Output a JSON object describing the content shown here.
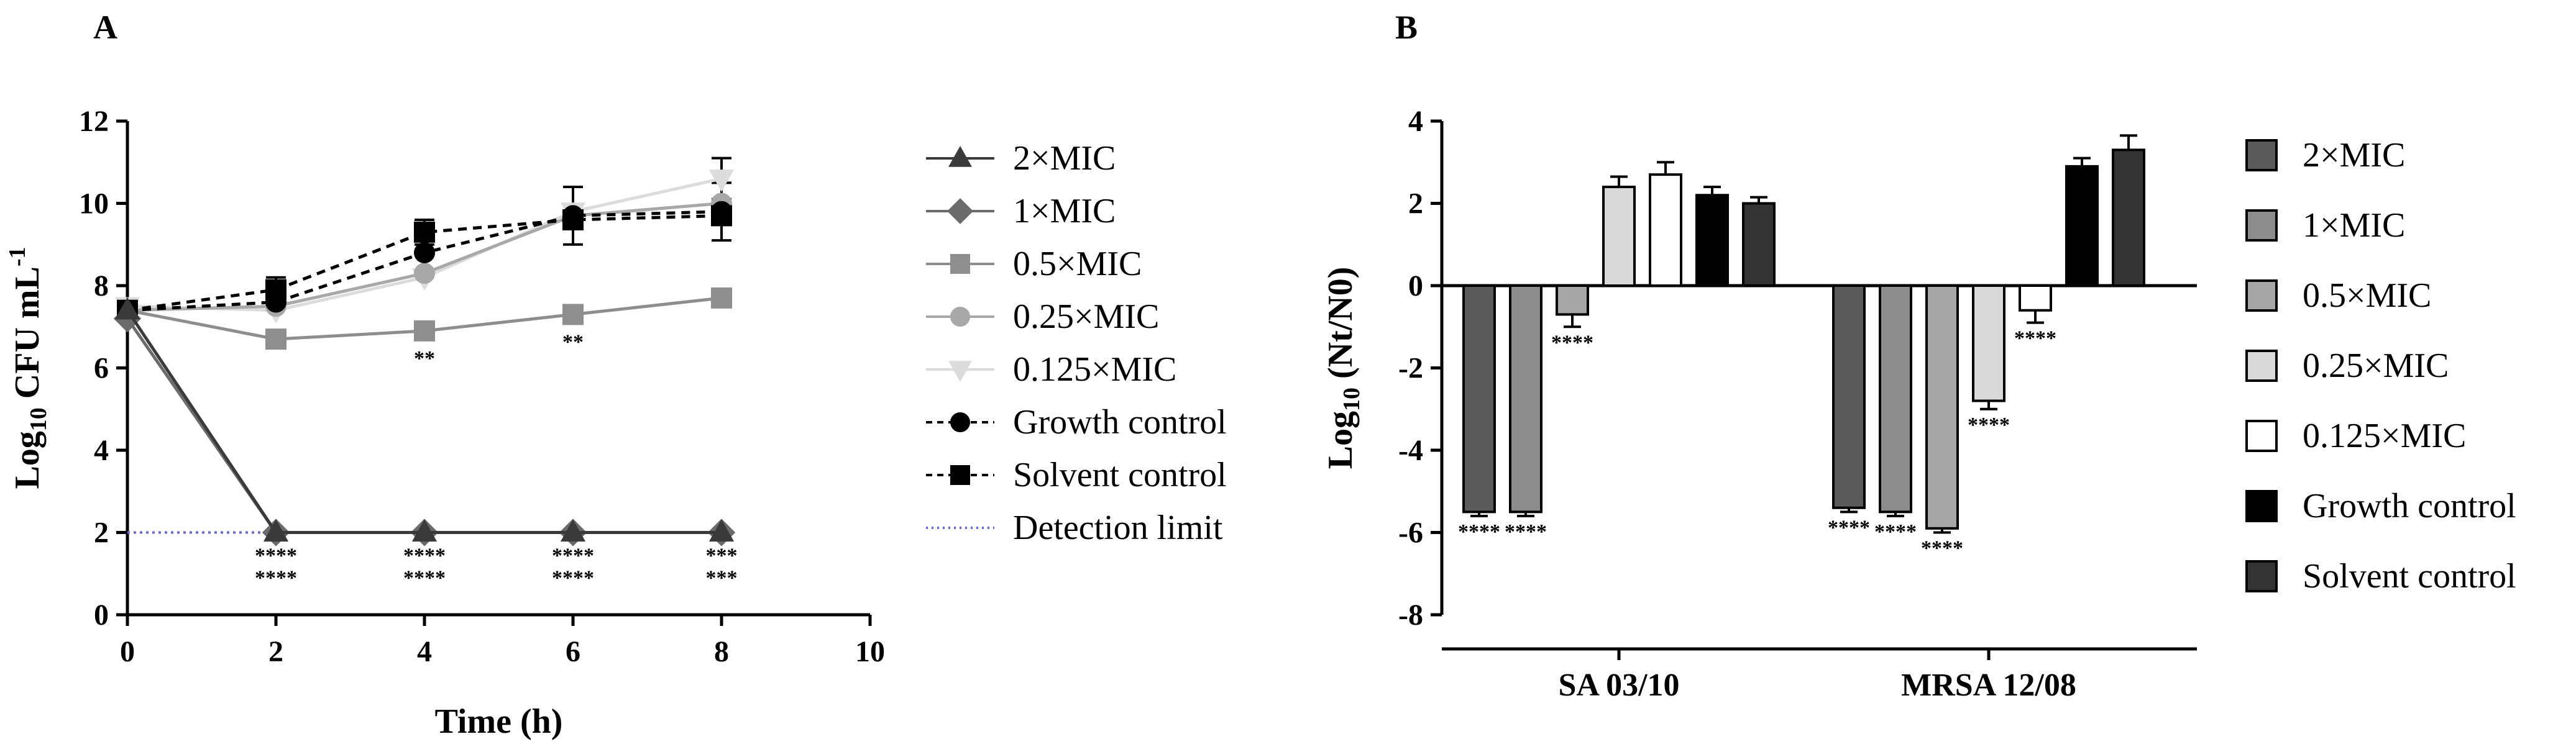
{
  "panels": [
    {
      "letter": "A",
      "chart_data": {
        "type": "line",
        "xlabel": "Time (h)",
        "ylabel_main": "Log",
        "ylabel_sub": "10",
        "ylabel_rest": " CFU mL",
        "ylabel_sup": "-1",
        "xlim": [
          0,
          10
        ],
        "ylim": [
          0,
          12
        ],
        "xticks": [
          "0",
          "2",
          "4",
          "6",
          "8",
          "10"
        ],
        "yticks": [
          "0",
          "2",
          "4",
          "6",
          "8",
          "10",
          "12"
        ],
        "detection_limit": 2,
        "series": [
          {
            "name": "2×MIC",
            "x": [
              0,
              2,
              4,
              6,
              8
            ],
            "y": [
              7.4,
              2.0,
              2.0,
              2.0,
              2.0
            ],
            "color": "#3a3a3a",
            "marker": "triangle",
            "dash": false
          },
          {
            "name": "1×MIC",
            "x": [
              0,
              2,
              4,
              6,
              8
            ],
            "y": [
              7.2,
              2.0,
              2.0,
              2.0,
              2.0
            ],
            "color": "#6b6b6b",
            "marker": "diamond",
            "dash": false
          },
          {
            "name": "0.5×MIC",
            "x": [
              0,
              2,
              4,
              6,
              8
            ],
            "y": [
              7.4,
              6.7,
              6.9,
              7.3,
              7.7
            ],
            "color": "#8e8e8e",
            "marker": "square",
            "dash": false
          },
          {
            "name": "0.25×MIC",
            "x": [
              0,
              2,
              4,
              6,
              8
            ],
            "y": [
              7.4,
              7.5,
              8.3,
              9.7,
              10.0
            ],
            "color": "#a8a8a8",
            "marker": "circle",
            "dash": false
          },
          {
            "name": "0.125×MIC",
            "x": [
              0,
              2,
              4,
              6,
              8
            ],
            "y": [
              7.5,
              7.4,
              8.2,
              9.8,
              10.6
            ],
            "color": "#dcdcdc",
            "marker": "triangle-down",
            "dash": false
          },
          {
            "name": "Growth control",
            "x": [
              0,
              2,
              4,
              6,
              8
            ],
            "y": [
              7.4,
              7.6,
              8.8,
              9.7,
              9.8
            ],
            "color": "#000000",
            "marker": "circle",
            "dash": true
          },
          {
            "name": "Solvent control",
            "x": [
              0,
              2,
              4,
              6,
              8
            ],
            "y": [
              7.4,
              7.9,
              9.3,
              9.6,
              9.7
            ],
            "color": "#000000",
            "marker": "square",
            "dash": true
          }
        ],
        "error_bars": [
          {
            "series": "Solvent control",
            "x": 2,
            "err": 0.3
          },
          {
            "series": "Solvent control",
            "x": 4,
            "err": 0.3
          },
          {
            "series": "0.25×MIC",
            "x": 6,
            "err": 0.7
          },
          {
            "series": "Growth control",
            "x": 8,
            "err": 0.7
          },
          {
            "series": "0.125×MIC",
            "x": 8,
            "err": 0.5
          }
        ],
        "annotations": [
          {
            "x": 4,
            "y": 6.9,
            "text": "**"
          },
          {
            "x": 6,
            "y": 7.3,
            "text": "**"
          },
          {
            "x": 2,
            "y": 2.0,
            "lines": [
              "****",
              "****"
            ]
          },
          {
            "x": 4,
            "y": 2.0,
            "lines": [
              "****",
              "****"
            ]
          },
          {
            "x": 6,
            "y": 2.0,
            "lines": [
              "****",
              "****"
            ]
          },
          {
            "x": 8,
            "y": 2.0,
            "lines": [
              "***",
              "***"
            ]
          }
        ],
        "legend": [
          {
            "label": "2×MIC"
          },
          {
            "label": "1×MIC"
          },
          {
            "label": "0.5×MIC"
          },
          {
            "label": "0.25×MIC"
          },
          {
            "label": "0.125×MIC"
          },
          {
            "label": "Growth control"
          },
          {
            "label": "Solvent control"
          },
          {
            "label": "Detection limit"
          }
        ],
        "detection_limit_color": "#6a6ad8"
      }
    },
    {
      "letter": "B",
      "chart_data": {
        "type": "bar",
        "ylabel_main": "Log",
        "ylabel_sub": "10",
        "ylabel_rest": " (Nt/N0)",
        "ylim": [
          -8,
          4
        ],
        "yticks": [
          "4",
          "2",
          "0",
          "-2",
          "-4",
          "-6",
          "-8"
        ],
        "categories": [
          "SA 03/10",
          "MRSA 12/08"
        ],
        "series": [
          {
            "name": "2×MIC",
            "values": [
              -5.5,
              -5.4
            ],
            "errors": [
              0.1,
              0.1
            ],
            "fill": "#5a5a5a",
            "sig": [
              "****",
              "****"
            ]
          },
          {
            "name": "1×MIC",
            "values": [
              -5.5,
              -5.5
            ],
            "errors": [
              0.1,
              0.1
            ],
            "fill": "#8c8c8c",
            "sig": [
              "****",
              "****"
            ]
          },
          {
            "name": "0.5×MIC",
            "values": [
              -0.7,
              -5.9
            ],
            "errors": [
              0.3,
              0.1
            ],
            "fill": "#a6a6a6",
            "sig": [
              "****",
              "****"
            ]
          },
          {
            "name": "0.25×MIC",
            "values": [
              2.4,
              -2.8
            ],
            "errors": [
              0.25,
              0.2
            ],
            "fill": "#d9d9d9",
            "sig": [
              "",
              "****"
            ]
          },
          {
            "name": "0.125×MIC",
            "values": [
              2.7,
              -0.6
            ],
            "errors": [
              0.3,
              0.3
            ],
            "fill": "#ffffff",
            "sig": [
              "",
              "****"
            ]
          },
          {
            "name": "Growth control",
            "values": [
              2.2,
              2.9
            ],
            "errors": [
              0.2,
              0.2
            ],
            "fill": "#000000",
            "sig": [
              "",
              ""
            ]
          },
          {
            "name": "Solvent control",
            "values": [
              2.0,
              3.3
            ],
            "errors": [
              0.15,
              0.35
            ],
            "fill": "#333333",
            "sig": [
              "",
              ""
            ]
          }
        ]
      }
    }
  ]
}
